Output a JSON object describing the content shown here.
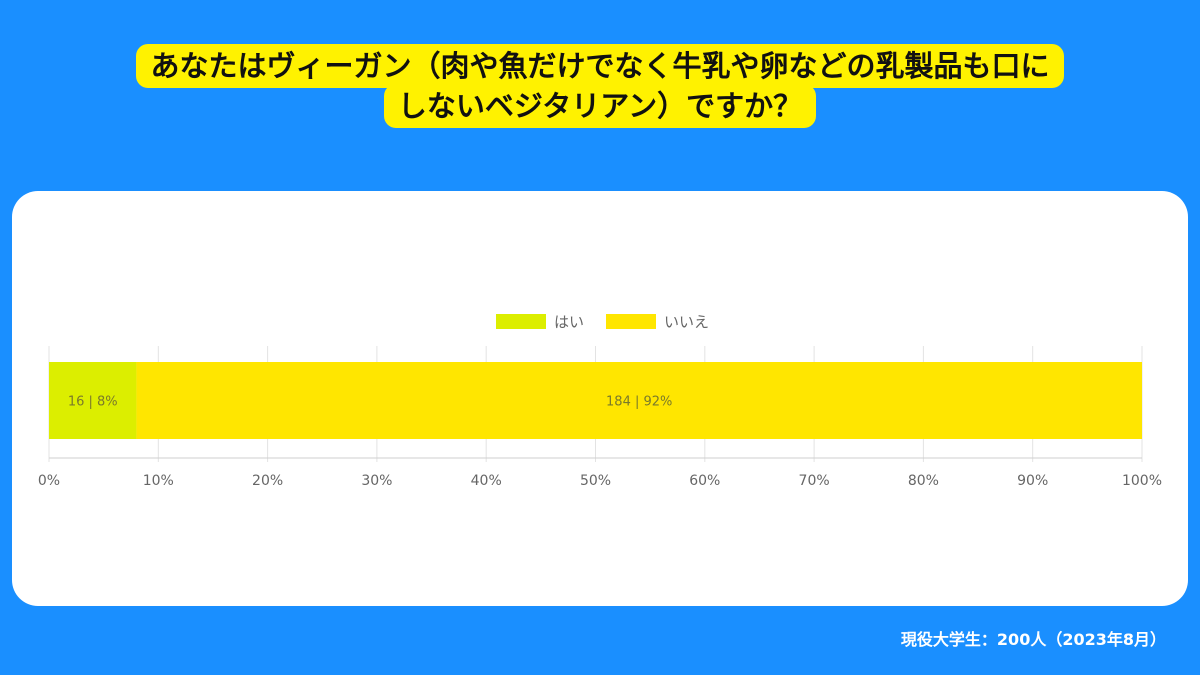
{
  "title": {
    "line1": "あなたはヴィーガン（肉や魚だけでなく牛乳や卵などの乳製品も口に",
    "line2": "しないベジタリアン）ですか？"
  },
  "footer": "現役大学生：200人（2023年8月）",
  "colors": {
    "background": "#1a8fff",
    "title_highlight": "#fff200",
    "yes": "#dcee00",
    "no": "#ffe600"
  },
  "chart_data": {
    "type": "bar",
    "orientation": "horizontal-stacked-100",
    "legend": {
      "position": "top-center"
    },
    "series": [
      {
        "name": "はい",
        "value": 16,
        "percent": 8,
        "label": "16 | 8%"
      },
      {
        "name": "いいえ",
        "value": 184,
        "percent": 92,
        "label": "184 | 92%"
      }
    ],
    "xlim": [
      0,
      100
    ],
    "xticks": [
      "0%",
      "10%",
      "20%",
      "30%",
      "40%",
      "50%",
      "60%",
      "70%",
      "80%",
      "90%",
      "100%"
    ],
    "grid": true
  }
}
